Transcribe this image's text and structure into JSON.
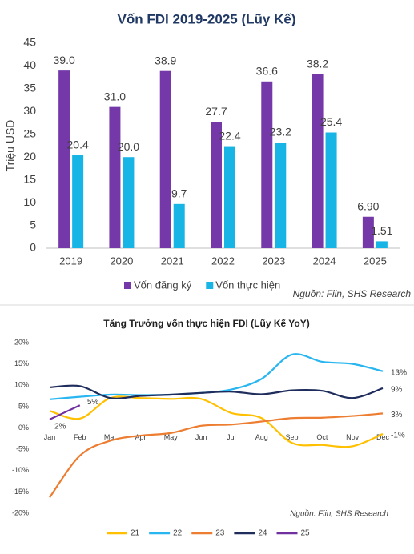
{
  "chart_data": [
    {
      "type": "bar",
      "title": "Vốn FDI 2019-2025 (Lũy Kế)",
      "y_label": "Triệu USD",
      "categories": [
        "2019",
        "2020",
        "2021",
        "2022",
        "2023",
        "2024",
        "2025"
      ],
      "series": [
        {
          "name": "Vốn đăng ký",
          "color": "#7438a8",
          "values": [
            39.0,
            31.0,
            38.9,
            27.7,
            36.6,
            38.2,
            6.9
          ],
          "value_labels": [
            "39.0",
            "31.0",
            "38.9",
            "27.7",
            "36.6",
            "38.2",
            "6.90"
          ]
        },
        {
          "name": "Vốn thực hiện",
          "color": "#17b4e6",
          "values": [
            20.4,
            20.0,
            9.7,
            22.4,
            23.2,
            25.4,
            1.51
          ],
          "value_labels": [
            "20.4",
            "20.0",
            "9.7",
            "22.4",
            "23.2",
            "25.4",
            "1.51"
          ]
        }
      ],
      "ylim": [
        0,
        45
      ],
      "yticks": [
        0,
        5,
        10,
        15,
        20,
        25,
        30,
        35,
        40,
        45
      ],
      "grid": false,
      "legend": "bottom",
      "source": "Nguồn: Fiin, SHS Research"
    },
    {
      "type": "line",
      "title": "Tăng Trưởng vốn thực hiện FDI (Lũy Kế YoY)",
      "categories": [
        "Jan",
        "Feb",
        "Mar",
        "Apr",
        "May",
        "Jun",
        "Jul",
        "Aug",
        "Sep",
        "Oct",
        "Nov",
        "Dec"
      ],
      "series": [
        {
          "name": "21",
          "color": "#ffc000",
          "values": [
            4,
            2.2,
            7,
            7,
            6.8,
            6.8,
            3.5,
            2.3,
            -3.5,
            -4,
            -4.3,
            -1.4
          ],
          "value_labels": [
            null,
            null,
            null,
            null,
            null,
            null,
            null,
            null,
            null,
            null,
            null,
            "-1%"
          ]
        },
        {
          "name": "22",
          "color": "#29b6f0",
          "values": [
            6.7,
            7.3,
            7.8,
            7.7,
            7.8,
            8.2,
            9,
            11.5,
            17.2,
            15.5,
            15,
            13.3
          ],
          "value_labels": [
            null,
            null,
            null,
            null,
            null,
            null,
            null,
            null,
            null,
            null,
            null,
            "13%"
          ]
        },
        {
          "name": "23",
          "color": "#ed7d31",
          "values": [
            -16.3,
            -6.5,
            -3,
            -1.8,
            -1.2,
            0.5,
            0.8,
            1.5,
            2.3,
            2.4,
            2.8,
            3.4
          ],
          "value_labels": [
            null,
            null,
            null,
            null,
            null,
            null,
            null,
            null,
            null,
            null,
            null,
            "3%"
          ]
        },
        {
          "name": "24",
          "color": "#1f2d5c",
          "values": [
            9.5,
            9.8,
            7,
            7.5,
            7.8,
            8.2,
            8.5,
            7.9,
            8.8,
            8.7,
            7.0,
            9.3
          ],
          "value_labels": [
            null,
            null,
            null,
            null,
            null,
            null,
            null,
            null,
            null,
            null,
            null,
            "9%"
          ]
        },
        {
          "name": "25",
          "color": "#7030a0",
          "values": [
            2,
            5.3,
            null,
            null,
            null,
            null,
            null,
            null,
            null,
            null,
            null,
            null
          ],
          "value_labels": [
            "2%",
            "5%",
            null,
            null,
            null,
            null,
            null,
            null,
            null,
            null,
            null,
            null
          ]
        }
      ],
      "ylim": [
        -20,
        20
      ],
      "yticks": [
        {
          "value": -20,
          "label": "-20%"
        },
        {
          "value": -15,
          "label": "-15%"
        },
        {
          "value": -10,
          "label": "-10%"
        },
        {
          "value": -5,
          "label": "-5%"
        },
        {
          "value": 0,
          "label": "0%"
        },
        {
          "value": 5,
          "label": "5%"
        },
        {
          "value": 10,
          "label": "10%"
        },
        {
          "value": 15,
          "label": "15%"
        },
        {
          "value": 20,
          "label": "20%"
        }
      ],
      "grid": false,
      "legend": "bottom",
      "source": "Nguồn: Fiin, SHS Research"
    }
  ]
}
